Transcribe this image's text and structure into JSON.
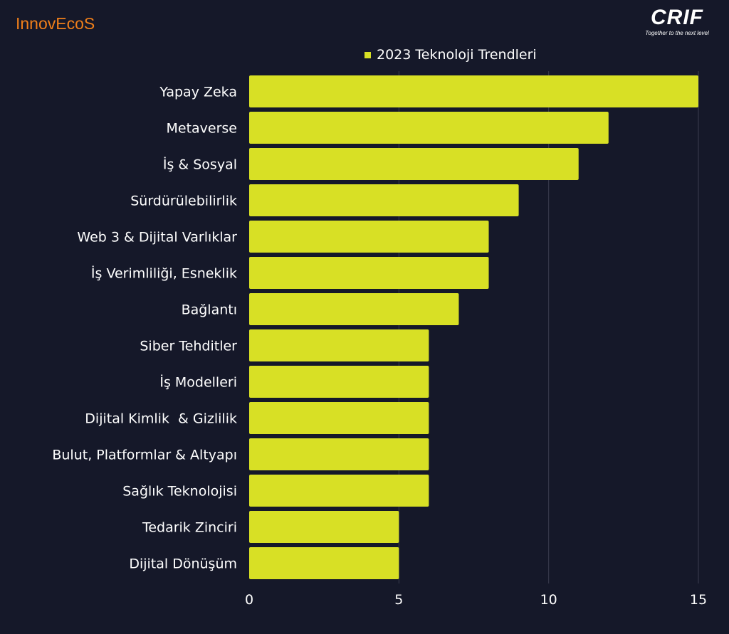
{
  "logos": {
    "left": "InnovEcoS",
    "right": "CRIF",
    "right_tagline": "Together to the next level"
  },
  "colors": {
    "background": "#151829",
    "bar": "#d8e025",
    "brand_left": "#f07f1a",
    "grid": "#3a3d4e"
  },
  "chart_data": {
    "type": "bar",
    "orientation": "horizontal",
    "categories": [
      "Yapay Zeka",
      "Metaverse",
      "İş & Sosyal",
      "Sürdürülebilirlik",
      "Web 3 & Dijital Varlıklar",
      "İş Verimliliği, Esneklik",
      "Bağlantı",
      "Siber Tehditler",
      "İş Modelleri",
      "Dijital Kimlik  & Gizlilik",
      "Bulut, Platformlar & Altyapı",
      "Sağlık Teknolojisi",
      "Tedarik Zinciri",
      "Dijital Dönüşüm"
    ],
    "series": [
      {
        "name": "2023 Teknoloji Trendleri",
        "values": [
          15,
          12,
          11,
          9,
          8,
          8,
          7,
          6,
          6,
          6,
          6,
          6,
          5,
          5
        ]
      }
    ],
    "xlim": [
      0,
      15
    ],
    "xticks": [
      0,
      5,
      10,
      15
    ],
    "grid": "vertical",
    "legend": "top-center"
  }
}
